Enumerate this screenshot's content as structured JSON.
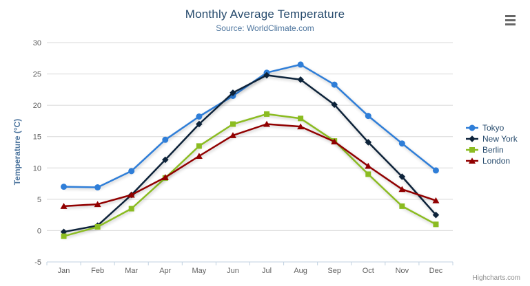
{
  "chart_data": {
    "type": "line",
    "title": "Monthly Average Temperature",
    "subtitle": "Source: WorldClimate.com",
    "xlabel": "",
    "ylabel": "Temperature (°C)",
    "categories": [
      "Jan",
      "Feb",
      "Mar",
      "Apr",
      "May",
      "Jun",
      "Jul",
      "Aug",
      "Sep",
      "Oct",
      "Nov",
      "Dec"
    ],
    "series": [
      {
        "name": "Tokyo",
        "color": "#2f7ed8",
        "symbol": "circle",
        "values": [
          7.0,
          6.9,
          9.5,
          14.5,
          18.2,
          21.5,
          25.2,
          26.5,
          23.3,
          18.3,
          13.9,
          9.6
        ]
      },
      {
        "name": "New York",
        "color": "#0d233a",
        "symbol": "diamond",
        "values": [
          -0.2,
          0.8,
          5.7,
          11.3,
          17.0,
          22.0,
          24.8,
          24.1,
          20.1,
          14.1,
          8.6,
          2.5
        ]
      },
      {
        "name": "Berlin",
        "color": "#8bbc21",
        "symbol": "square",
        "values": [
          -0.9,
          0.6,
          3.5,
          8.4,
          13.5,
          17.0,
          18.6,
          17.9,
          14.3,
          9.0,
          3.9,
          1.0
        ]
      },
      {
        "name": "London",
        "color": "#910000",
        "symbol": "triangle",
        "values": [
          3.9,
          4.2,
          5.7,
          8.5,
          11.9,
          15.2,
          17.0,
          16.6,
          14.2,
          10.3,
          6.6,
          4.8
        ]
      }
    ],
    "ylim": [
      -5,
      30
    ],
    "yticks": [
      -5,
      0,
      5,
      10,
      15,
      20,
      25,
      30
    ],
    "grid": true,
    "legend_position": "right"
  },
  "colors": {
    "background": "#ffffff",
    "title": "#274b6d",
    "subtitle": "#4d759e",
    "axis_title": "#4d759e",
    "axis_label": "#606060",
    "grid": "#d8d8d8",
    "axis_line": "#c0d0e0",
    "tick": "#c0d0e0",
    "legend_text": "#274b6d",
    "credits": "#909090",
    "menu_icon": "#666666"
  },
  "menu": {
    "icon_name": "hamburger-icon"
  },
  "credits": {
    "label": "Highcharts.com"
  }
}
